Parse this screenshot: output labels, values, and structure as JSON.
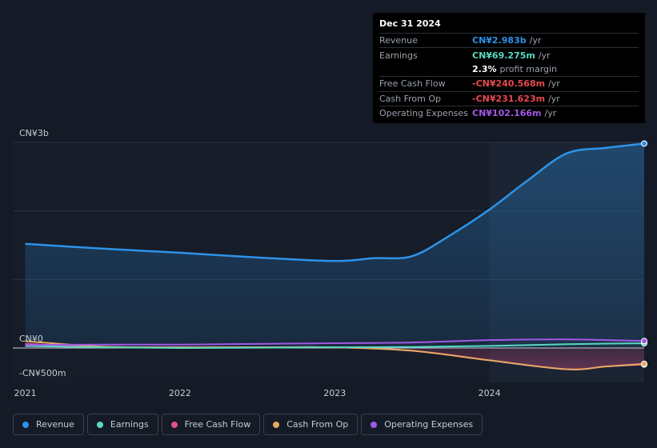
{
  "chart_data": {
    "type": "area",
    "x_ticks": [
      "2021",
      "2022",
      "2023",
      "2024"
    ],
    "y_ticks": [
      {
        "label": "CN¥3b",
        "value": 3000
      },
      {
        "label": "CN¥0",
        "value": 0
      },
      {
        "label": "-CN¥500m",
        "value": -500
      }
    ],
    "ylim": [
      -500,
      3000
    ],
    "xlim": [
      2020.92,
      2025.0
    ],
    "grid": true,
    "highlight_start": 2024.0,
    "series": [
      {
        "name": "Revenue",
        "color": "#2d93e8",
        "area": true,
        "points": [
          [
            2021.0,
            1520
          ],
          [
            2021.5,
            1450
          ],
          [
            2022.0,
            1390
          ],
          [
            2022.5,
            1320
          ],
          [
            2023.0,
            1270
          ],
          [
            2023.25,
            1310
          ],
          [
            2023.5,
            1340
          ],
          [
            2023.75,
            1650
          ],
          [
            2024.0,
            2020
          ],
          [
            2024.25,
            2450
          ],
          [
            2024.5,
            2840
          ],
          [
            2024.75,
            2920
          ],
          [
            2025.0,
            2983
          ]
        ]
      },
      {
        "name": "Earnings",
        "color": "#58d8c0",
        "area": false,
        "points": [
          [
            2021.0,
            30
          ],
          [
            2021.5,
            10
          ],
          [
            2022.0,
            0
          ],
          [
            2022.5,
            5
          ],
          [
            2023.0,
            10
          ],
          [
            2023.5,
            15
          ],
          [
            2024.0,
            30
          ],
          [
            2024.5,
            55
          ],
          [
            2025.0,
            69.275
          ]
        ]
      },
      {
        "name": "Free Cash Flow",
        "color": "#e0508a",
        "area": false,
        "points": [
          [
            2021.0,
            60
          ],
          [
            2021.5,
            15
          ],
          [
            2022.0,
            10
          ],
          [
            2022.5,
            10
          ],
          [
            2023.0,
            10
          ],
          [
            2023.5,
            -40
          ],
          [
            2024.0,
            -180
          ],
          [
            2024.5,
            -310
          ],
          [
            2024.75,
            -270
          ],
          [
            2025.0,
            -240.568
          ]
        ]
      },
      {
        "name": "Cash From Op",
        "color": "#e6a863",
        "area": false,
        "points": [
          [
            2021.0,
            100
          ],
          [
            2021.5,
            20
          ],
          [
            2022.0,
            10
          ],
          [
            2022.5,
            10
          ],
          [
            2023.0,
            10
          ],
          [
            2023.5,
            -40
          ],
          [
            2024.0,
            -180
          ],
          [
            2024.5,
            -310
          ],
          [
            2024.75,
            -270
          ],
          [
            2025.0,
            -231.623
          ]
        ]
      },
      {
        "name": "Operating Expenses",
        "color": "#a259e6",
        "area": false,
        "points": [
          [
            2021.0,
            45
          ],
          [
            2021.5,
            50
          ],
          [
            2022.0,
            50
          ],
          [
            2022.5,
            60
          ],
          [
            2023.0,
            70
          ],
          [
            2023.5,
            80
          ],
          [
            2024.0,
            115
          ],
          [
            2024.5,
            125
          ],
          [
            2025.0,
            102.166
          ]
        ]
      }
    ]
  },
  "tooltip": {
    "date": "Dec 31 2024",
    "rows": [
      {
        "label": "Revenue",
        "value": "CN¥2.983b",
        "unit": "/yr",
        "color": "#2d93e8"
      },
      {
        "label": "Earnings",
        "value": "CN¥69.275m",
        "unit": "/yr",
        "color": "#58d8c0"
      },
      {
        "label": "",
        "value": "2.3%",
        "unit": "profit margin",
        "color": "#ffffff"
      },
      {
        "label": "Free Cash Flow",
        "value": "-CN¥240.568m",
        "unit": "/yr",
        "color": "#e8494f"
      },
      {
        "label": "Cash From Op",
        "value": "-CN¥231.623m",
        "unit": "/yr",
        "color": "#e8494f"
      },
      {
        "label": "Operating Expenses",
        "value": "CN¥102.166m",
        "unit": "/yr",
        "color": "#a259e6"
      }
    ]
  },
  "legend": [
    {
      "label": "Revenue",
      "color": "#2d93e8"
    },
    {
      "label": "Earnings",
      "color": "#58d8c0"
    },
    {
      "label": "Free Cash Flow",
      "color": "#e0508a"
    },
    {
      "label": "Cash From Op",
      "color": "#e6a863"
    },
    {
      "label": "Operating Expenses",
      "color": "#a259e6"
    }
  ]
}
